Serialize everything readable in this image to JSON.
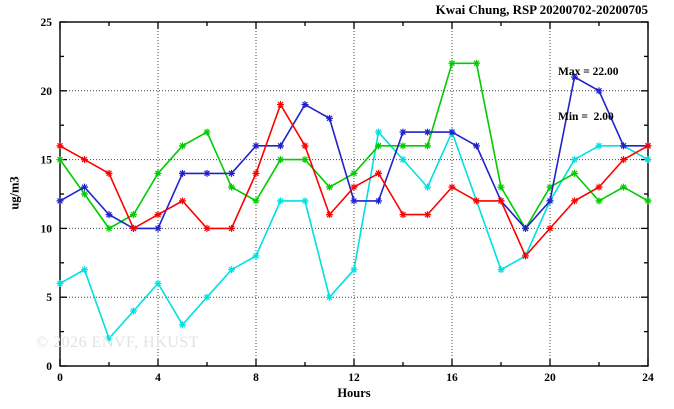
{
  "title": "Kwai Chung, RSP 20200702-20200705",
  "annotation": {
    "max_label": "Max = 22.00",
    "min_label": "Min =  2.00"
  },
  "watermark": "© 2026 ENVF, HKUST",
  "axes": {
    "x_label": "Hours",
    "y_label": "ug/m3",
    "x_major_ticks": [
      0,
      4,
      8,
      12,
      16,
      20,
      24
    ],
    "x_minor_ticks": [
      2,
      6,
      10,
      14,
      18,
      22
    ],
    "y_major_ticks": [
      0,
      5,
      10,
      15,
      20,
      25
    ],
    "y_minor_ticks": [
      2.5,
      7.5,
      12.5,
      17.5,
      22.5
    ],
    "grid_x": [
      4,
      8,
      12,
      16,
      20
    ],
    "grid_y": [
      5,
      10,
      15,
      20
    ]
  },
  "chart_data": {
    "type": "line",
    "title": "Kwai Chung, RSP 20200702-20200705",
    "xlabel": "Hours",
    "ylabel": "ug/m3",
    "xlim": [
      0,
      24
    ],
    "ylim": [
      0,
      25
    ],
    "grid": "dotted",
    "legend_position": "none",
    "marker": "asterisk",
    "annotations": [
      "Max = 22.00",
      "Min =  2.00"
    ],
    "x": [
      0,
      1,
      2,
      3,
      4,
      5,
      6,
      7,
      8,
      9,
      10,
      11,
      12,
      13,
      14,
      15,
      16,
      17,
      18,
      19,
      20,
      21,
      22,
      23,
      24
    ],
    "series": [
      {
        "name": "cyan-series",
        "color": "#00e0e0",
        "values": [
          6,
          7,
          2,
          4,
          6,
          3,
          5,
          7,
          8,
          12,
          12,
          5,
          7,
          17,
          15,
          13,
          17,
          12,
          7,
          8,
          12,
          15,
          16,
          16,
          15
        ]
      },
      {
        "name": "green-series",
        "color": "#00cc00",
        "values": [
          15,
          12.5,
          10,
          11,
          14,
          16,
          17,
          13,
          12,
          15,
          15,
          13,
          14,
          16,
          16,
          16,
          22,
          22,
          13,
          10,
          13,
          14,
          12,
          13,
          12
        ]
      },
      {
        "name": "blue-series",
        "color": "#2222cc",
        "values": [
          12,
          13,
          11,
          10,
          10,
          14,
          14,
          14,
          16,
          16,
          19,
          18,
          12,
          12,
          17,
          17,
          17,
          16,
          12,
          10,
          12,
          21,
          20,
          16,
          16
        ]
      },
      {
        "name": "red-series",
        "color": "#ff0000",
        "values": [
          16,
          15,
          14,
          10,
          11,
          12,
          10,
          10,
          14,
          19,
          16,
          11,
          13,
          14,
          11,
          11,
          13,
          12,
          12,
          8,
          10,
          12,
          13,
          15,
          16
        ]
      }
    ]
  }
}
